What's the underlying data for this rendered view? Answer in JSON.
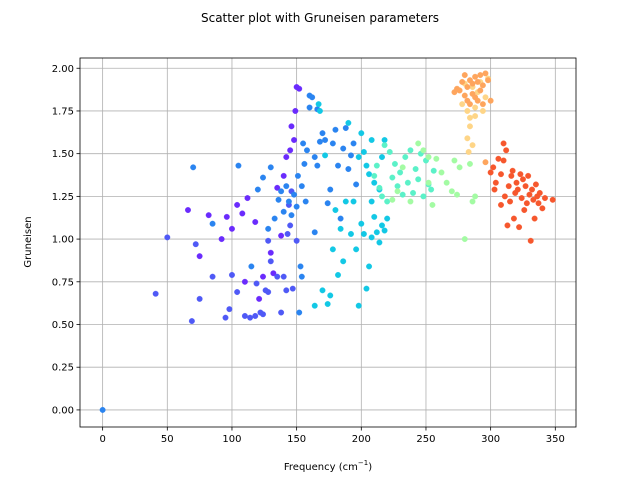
{
  "chart_data": {
    "type": "scatter",
    "title": "Scatter plot with Gruneisen parameters",
    "xlabel": "Frequency (cm",
    "xlabel_sup": "−1",
    "xlabel_suffix": ")",
    "ylabel": "Gruneisen",
    "xlim": [
      -17.5,
      366
    ],
    "ylim": [
      -0.1,
      2.06
    ],
    "xticks": [
      "0",
      "50",
      "100",
      "150",
      "200",
      "250",
      "300",
      "350"
    ],
    "yticks": [
      "0.00",
      "0.25",
      "0.50",
      "0.75",
      "1.00",
      "1.25",
      "1.50",
      "1.75",
      "2.00"
    ],
    "grid": true,
    "colormap": "rainbow",
    "series": [
      {
        "color": "#6a2bfd",
        "points": [
          [
            66,
            1.17
          ],
          [
            75,
            0.9
          ],
          [
            82,
            1.14
          ],
          [
            92,
            1.0
          ],
          [
            96,
            1.13
          ],
          [
            100,
            1.06
          ],
          [
            104,
            1.2
          ],
          [
            108,
            1.15
          ],
          [
            112,
            1.24
          ],
          [
            118,
            1.1
          ],
          [
            121,
            0.65
          ],
          [
            124,
            0.78
          ],
          [
            132,
            0.8
          ],
          [
            135,
            1.3
          ],
          [
            140,
            1.37
          ],
          [
            145,
            1.52
          ],
          [
            146,
            1.66
          ],
          [
            148,
            1.58
          ],
          [
            150,
            1.89
          ],
          [
            149,
            1.75
          ],
          [
            152,
            1.88
          ],
          [
            138,
            1.02
          ],
          [
            110,
            0.75
          ],
          [
            130,
            0.92
          ],
          [
            142,
            1.48
          ]
        ]
      },
      {
        "color": "#4f59f6",
        "points": [
          [
            41,
            0.68
          ],
          [
            50,
            1.01
          ],
          [
            69,
            0.52
          ],
          [
            72,
            0.97
          ],
          [
            75,
            0.65
          ],
          [
            85,
            0.78
          ],
          [
            95,
            0.54
          ],
          [
            98,
            0.59
          ],
          [
            100,
            0.79
          ],
          [
            104,
            0.69
          ],
          [
            110,
            0.55
          ],
          [
            114,
            0.54
          ],
          [
            118,
            0.55
          ],
          [
            119,
            0.74
          ],
          [
            122,
            0.57
          ],
          [
            124,
            0.56
          ],
          [
            126,
            0.7
          ],
          [
            128,
            0.69
          ],
          [
            128,
            0.99
          ],
          [
            130,
            0.87
          ],
          [
            135,
            0.78
          ],
          [
            138,
            0.57
          ],
          [
            140,
            0.78
          ],
          [
            142,
            0.7
          ],
          [
            143,
            1.03
          ],
          [
            145,
            1.08
          ],
          [
            147,
            0.71
          ],
          [
            144,
            1.2
          ],
          [
            146,
            1.28
          ],
          [
            150,
            0.99
          ]
        ]
      },
      {
        "color": "#2a84f0",
        "points": [
          [
            0,
            0.0
          ],
          [
            70,
            1.42
          ],
          [
            85,
            1.09
          ],
          [
            105,
            1.43
          ],
          [
            115,
            0.84
          ],
          [
            120,
            1.29
          ],
          [
            124,
            1.36
          ],
          [
            128,
            1.06
          ],
          [
            130,
            1.42
          ],
          [
            133,
            1.12
          ],
          [
            136,
            1.23
          ],
          [
            138,
            1.28
          ],
          [
            140,
            1.16
          ],
          [
            142,
            1.31
          ],
          [
            144,
            1.22
          ],
          [
            146,
            1.14
          ],
          [
            148,
            1.26
          ],
          [
            150,
            1.19
          ],
          [
            151,
            1.37
          ],
          [
            152,
            0.57
          ],
          [
            153,
            0.84
          ],
          [
            154,
            1.31
          ],
          [
            155,
            1.56
          ],
          [
            156,
            1.44
          ],
          [
            157,
            1.22
          ],
          [
            158,
            1.52
          ],
          [
            160,
            1.84
          ],
          [
            162,
            1.83
          ],
          [
            164,
            1.48
          ],
          [
            166,
            1.43
          ],
          [
            168,
            1.57
          ],
          [
            170,
            1.62
          ],
          [
            172,
            1.58
          ],
          [
            174,
            1.21
          ],
          [
            176,
            1.29
          ],
          [
            178,
            1.56
          ],
          [
            180,
            1.64
          ],
          [
            182,
            1.43
          ],
          [
            184,
            1.12
          ],
          [
            186,
            1.53
          ],
          [
            188,
            1.65
          ],
          [
            190,
            1.41
          ],
          [
            192,
            1.49
          ],
          [
            194,
            1.56
          ],
          [
            196,
            1.32
          ],
          [
            164,
            1.04
          ],
          [
            154,
            0.78
          ],
          [
            160,
            1.77
          ],
          [
            166,
            1.76
          ]
        ]
      },
      {
        "color": "#12c8e5",
        "points": [
          [
            164,
            0.61
          ],
          [
            167,
            1.79
          ],
          [
            168,
            1.75
          ],
          [
            170,
            0.7
          ],
          [
            172,
            1.49
          ],
          [
            174,
            0.62
          ],
          [
            176,
            0.67
          ],
          [
            178,
            0.94
          ],
          [
            180,
            1.17
          ],
          [
            182,
            0.79
          ],
          [
            184,
            1.06
          ],
          [
            186,
            0.87
          ],
          [
            188,
            1.22
          ],
          [
            190,
            1.68
          ],
          [
            192,
            1.03
          ],
          [
            194,
            1.22
          ],
          [
            196,
            0.94
          ],
          [
            198,
            0.61
          ],
          [
            200,
            1.09
          ],
          [
            202,
            1.03
          ],
          [
            204,
            0.71
          ],
          [
            206,
            0.84
          ],
          [
            208,
            1.01
          ],
          [
            210,
            1.13
          ],
          [
            212,
            1.04
          ],
          [
            214,
            0.98
          ],
          [
            216,
            1.08
          ],
          [
            218,
            1.05
          ],
          [
            220,
            1.12
          ],
          [
            204,
            1.43
          ],
          [
            206,
            1.38
          ],
          [
            208,
            1.22
          ],
          [
            210,
            1.33
          ],
          [
            214,
            1.29
          ],
          [
            216,
            1.48
          ],
          [
            218,
            1.58
          ],
          [
            200,
            1.62
          ],
          [
            202,
            1.51
          ],
          [
            198,
            1.48
          ],
          [
            208,
            1.58
          ]
        ]
      },
      {
        "color": "#5bf1c8",
        "points": [
          [
            216,
            1.25
          ],
          [
            218,
            1.55
          ],
          [
            220,
            1.22
          ],
          [
            222,
            1.51
          ],
          [
            224,
            1.36
          ],
          [
            226,
            1.44
          ],
          [
            228,
            1.31
          ],
          [
            230,
            1.39
          ],
          [
            232,
            1.26
          ],
          [
            234,
            1.48
          ],
          [
            236,
            1.33
          ],
          [
            238,
            1.52
          ],
          [
            240,
            1.27
          ],
          [
            242,
            1.41
          ],
          [
            244,
            1.35
          ],
          [
            246,
            1.5
          ],
          [
            248,
            1.25
          ],
          [
            250,
            1.46
          ],
          [
            252,
            1.32
          ],
          [
            254,
            1.29
          ],
          [
            256,
            1.4
          ],
          [
            210,
            1.37
          ],
          [
            212,
            1.43
          ],
          [
            214,
            1.3
          ]
        ]
      },
      {
        "color": "#a3fba3",
        "points": [
          [
            224,
            1.23
          ],
          [
            228,
            1.28
          ],
          [
            232,
            1.42
          ],
          [
            238,
            1.22
          ],
          [
            244,
            1.56
          ],
          [
            248,
            1.52
          ],
          [
            252,
            1.33
          ],
          [
            255,
            1.2
          ],
          [
            258,
            1.47
          ],
          [
            262,
            1.39
          ],
          [
            266,
            1.33
          ],
          [
            270,
            1.28
          ],
          [
            272,
            1.46
          ],
          [
            274,
            1.26
          ],
          [
            276,
            1.42
          ],
          [
            280,
            1.0
          ],
          [
            284,
            1.44
          ],
          [
            286,
            1.22
          ],
          [
            288,
            1.25
          ],
          [
            252,
            1.48
          ]
        ]
      },
      {
        "color": "#fed587",
        "points": [
          [
            278,
            1.79
          ],
          [
            280,
            1.91
          ],
          [
            282,
            1.75
          ],
          [
            284,
            1.71
          ],
          [
            286,
            1.89
          ],
          [
            288,
            1.77
          ],
          [
            290,
            1.86
          ],
          [
            292,
            1.92
          ],
          [
            294,
            1.75
          ],
          [
            296,
            1.83
          ],
          [
            298,
            1.94
          ],
          [
            282,
            1.59
          ],
          [
            284,
            1.66
          ],
          [
            286,
            1.55
          ],
          [
            288,
            1.72
          ],
          [
            283,
            1.51
          ]
        ]
      },
      {
        "color": "#fea55d",
        "points": [
          [
            272,
            1.86
          ],
          [
            274,
            1.88
          ],
          [
            276,
            1.87
          ],
          [
            278,
            1.92
          ],
          [
            280,
            1.84
          ],
          [
            282,
            1.89
          ],
          [
            284,
            1.93
          ],
          [
            286,
            1.91
          ],
          [
            288,
            1.95
          ],
          [
            290,
            1.92
          ],
          [
            292,
            1.96
          ],
          [
            294,
            1.9
          ],
          [
            296,
            1.97
          ],
          [
            298,
            1.93
          ],
          [
            300,
            1.81
          ],
          [
            282,
            1.81
          ],
          [
            284,
            1.79
          ],
          [
            286,
            1.85
          ],
          [
            288,
            1.83
          ],
          [
            290,
            1.81
          ],
          [
            292,
            1.87
          ],
          [
            294,
            1.79
          ],
          [
            296,
            1.45
          ],
          [
            280,
            1.96
          ]
        ]
      },
      {
        "color": "#f6572d",
        "points": [
          [
            300,
            1.39
          ],
          [
            302,
            1.42
          ],
          [
            303,
            1.29
          ],
          [
            304,
            1.33
          ],
          [
            306,
            1.47
          ],
          [
            308,
            1.2
          ],
          [
            308,
            1.38
          ],
          [
            310,
            1.46
          ],
          [
            311,
            1.25
          ],
          [
            312,
            1.52
          ],
          [
            313,
            1.08
          ],
          [
            314,
            1.31
          ],
          [
            315,
            1.22
          ],
          [
            316,
            1.37
          ],
          [
            317,
            1.4
          ],
          [
            318,
            1.12
          ],
          [
            319,
            1.27
          ],
          [
            320,
            1.33
          ],
          [
            321,
            1.29
          ],
          [
            322,
            1.07
          ],
          [
            323,
            1.38
          ],
          [
            324,
            1.24
          ],
          [
            325,
            1.35
          ],
          [
            326,
            1.17
          ],
          [
            327,
            1.31
          ],
          [
            328,
            1.21
          ],
          [
            329,
            1.37
          ],
          [
            330,
            1.26
          ],
          [
            331,
            0.99
          ],
          [
            332,
            1.29
          ],
          [
            333,
            1.23
          ],
          [
            334,
            1.12
          ],
          [
            335,
            1.32
          ],
          [
            336,
            1.25
          ],
          [
            337,
            1.21
          ],
          [
            338,
            1.27
          ],
          [
            340,
            1.18
          ],
          [
            342,
            1.24
          ],
          [
            348,
            1.23
          ],
          [
            310,
            1.56
          ]
        ]
      }
    ]
  }
}
